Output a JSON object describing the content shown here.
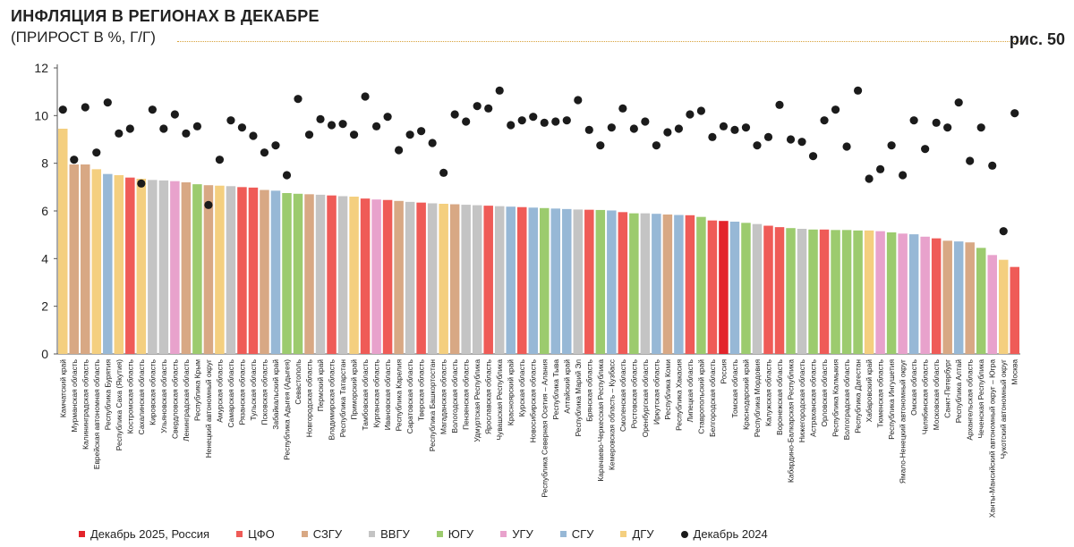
{
  "header": {
    "title": "ИНФЛЯЦИЯ В РЕГИОНАХ В ДЕКАБРЕ",
    "subtitle": "(ПРИРОСТ В %, Г/Г)",
    "figure_label": "рис. 50"
  },
  "colors": {
    "Россия": "#e3242b",
    "ЦФО": "#ef5b57",
    "СЗГУ": "#d8a884",
    "ВВГУ": "#c4c4c4",
    "ЮГУ": "#9ccb6e",
    "УГУ": "#e8a2cc",
    "СГУ": "#97b8d6",
    "ДГУ": "#f4cf7f",
    "dot": "#1b1b1b"
  },
  "legend": [
    {
      "key": "Россия",
      "label": "Декабрь 2025, Россия",
      "color": "#e3242b",
      "shape": "square"
    },
    {
      "key": "ЦФО",
      "label": "ЦФО",
      "color": "#ef5b57",
      "shape": "square"
    },
    {
      "key": "СЗГУ",
      "label": "СЗГУ",
      "color": "#d8a884",
      "shape": "square"
    },
    {
      "key": "ВВГУ",
      "label": "ВВГУ",
      "color": "#c4c4c4",
      "shape": "square"
    },
    {
      "key": "ЮГУ",
      "label": "ЮГУ",
      "color": "#9ccb6e",
      "shape": "square"
    },
    {
      "key": "УГУ",
      "label": "УГУ",
      "color": "#e8a2cc",
      "shape": "square"
    },
    {
      "key": "СГУ",
      "label": "СГУ",
      "color": "#97b8d6",
      "shape": "square"
    },
    {
      "key": "ДГУ",
      "label": "ДГУ",
      "color": "#f4cf7f",
      "shape": "square"
    },
    {
      "key": "dot",
      "label": "Декабрь 2024",
      "color": "#1b1b1b",
      "shape": "dot"
    }
  ],
  "chart_data": {
    "type": "bar",
    "ylim": [
      0,
      12
    ],
    "yticks": [
      0,
      2,
      4,
      6,
      8,
      10,
      12
    ],
    "grid": false,
    "legend_position": "bottom",
    "series": [
      {
        "name": "Декабрь 2025",
        "type": "bar"
      },
      {
        "name": "Декабрь 2024",
        "type": "scatter"
      }
    ],
    "categories": [
      "Камчатский край",
      "Мурманская область",
      "Калининградская область",
      "Еврейская автономная область",
      "Республика Бурятия",
      "Республика Саха (Якутия)",
      "Костромская область",
      "Сахалинская область",
      "Кировская область",
      "Ульяновская область",
      "Свердловская область",
      "Ленинградская область",
      "Республика Крым",
      "Ненецкий автономный округ",
      "Амурская область",
      "Самарская область",
      "Рязанская область",
      "Тульская область",
      "Псковская область",
      "Забайкальский край",
      "Республика Адыгея (Адыгея)",
      "Севастополь",
      "Новгородская область",
      "Пермский край",
      "Владимирская область",
      "Республика Татарстан",
      "Приморский край",
      "Тамбовская область",
      "Курганская область",
      "Ивановская область",
      "Республика Карелия",
      "Саратовская область",
      "Тверская область",
      "Республика Башкортостан",
      "Магаданская область",
      "Вологодская область",
      "Пензенская область",
      "Удмуртская Республика",
      "Ярославская область",
      "Чувашская Республика",
      "Красноярский край",
      "Курская область",
      "Новосибирская область",
      "Республика Северная Осетия – Алания",
      "Республика Тыва",
      "Алтайский край",
      "Республика Марий Эл",
      "Брянская область",
      "Карачаево-Черкесская Республика",
      "Кемеровская область – Кузбасс",
      "Смоленская область",
      "Ростовская область",
      "Оренбургская область",
      "Иркутская область",
      "Республика Коми",
      "Республика Хакасия",
      "Липецкая область",
      "Ставропольский край",
      "Белгородская область",
      "Россия",
      "Томская область",
      "Краснодарский край",
      "Республика Мордовия",
      "Калужская область",
      "Воронежская область",
      "Кабардино-Балкарская Республика",
      "Нижегородская область",
      "Астраханская область",
      "Орловская область",
      "Республика Калмыкия",
      "Волгоградская область",
      "Республика Дагестан",
      "Хабаровский край",
      "Тюменская область",
      "Республика Ингушетия",
      "Ямало-Ненецкий автономный округ",
      "Омская область",
      "Челябинская область",
      "Московская область",
      "Санкт-Петербург",
      "Республика Алтай",
      "Архангельская область",
      "Чеченская Республика",
      "Ханты-Мансийский автономный округ – Югра",
      "Чукотский автономный округ",
      "Москва"
    ],
    "groups": [
      "ДГУ",
      "СЗГУ",
      "СЗГУ",
      "ДГУ",
      "СГУ",
      "ДГУ",
      "ЦФО",
      "ДГУ",
      "ВВГУ",
      "ВВГУ",
      "УГУ",
      "СЗГУ",
      "ЮГУ",
      "СЗГУ",
      "ДГУ",
      "ВВГУ",
      "ЦФО",
      "ЦФО",
      "СЗГУ",
      "СГУ",
      "ЮГУ",
      "ЮГУ",
      "СЗГУ",
      "ВВГУ",
      "ЦФО",
      "ВВГУ",
      "ДГУ",
      "ЦФО",
      "УГУ",
      "ЦФО",
      "СЗГУ",
      "ВВГУ",
      "ЦФО",
      "ВВГУ",
      "ДГУ",
      "СЗГУ",
      "ВВГУ",
      "ВВГУ",
      "ЦФО",
      "ВВГУ",
      "СГУ",
      "ЦФО",
      "СГУ",
      "ЮГУ",
      "СГУ",
      "СГУ",
      "ВВГУ",
      "ЦФО",
      "ЮГУ",
      "СГУ",
      "ЦФО",
      "ЮГУ",
      "ВВГУ",
      "СГУ",
      "СЗГУ",
      "СГУ",
      "ЦФО",
      "ЮГУ",
      "ЦФО",
      "Россия",
      "СГУ",
      "ЮГУ",
      "ВВГУ",
      "ЦФО",
      "ЦФО",
      "ЮГУ",
      "ВВГУ",
      "ЮГУ",
      "ЦФО",
      "ЮГУ",
      "ЮГУ",
      "ЮГУ",
      "ДГУ",
      "УГУ",
      "ЮГУ",
      "УГУ",
      "СГУ",
      "УГУ",
      "ЦФО",
      "СЗГУ",
      "СГУ",
      "СЗГУ",
      "ЮГУ",
      "УГУ",
      "ДГУ",
      "ЦФО"
    ],
    "values": [
      9.45,
      7.95,
      7.95,
      7.75,
      7.55,
      7.5,
      7.4,
      7.35,
      7.3,
      7.28,
      7.25,
      7.2,
      7.12,
      7.08,
      7.06,
      7.04,
      7.0,
      6.98,
      6.88,
      6.85,
      6.75,
      6.72,
      6.7,
      6.68,
      6.65,
      6.62,
      6.6,
      6.52,
      6.48,
      6.46,
      6.42,
      6.38,
      6.35,
      6.32,
      6.3,
      6.28,
      6.26,
      6.24,
      6.22,
      6.2,
      6.18,
      6.16,
      6.14,
      6.12,
      6.1,
      6.08,
      6.06,
      6.05,
      6.04,
      6.02,
      5.95,
      5.9,
      5.9,
      5.88,
      5.85,
      5.83,
      5.82,
      5.75,
      5.6,
      5.58,
      5.55,
      5.5,
      5.45,
      5.38,
      5.32,
      5.28,
      5.25,
      5.22,
      5.22,
      5.2,
      5.2,
      5.18,
      5.18,
      5.15,
      5.1,
      5.05,
      5.02,
      4.92,
      4.85,
      4.75,
      4.72,
      4.68,
      4.45,
      4.15,
      3.95,
      3.65
    ],
    "values_2024": [
      10.25,
      8.15,
      10.35,
      8.45,
      10.55,
      9.25,
      9.45,
      7.15,
      10.25,
      9.45,
      10.05,
      9.25,
      9.55,
      6.25,
      8.15,
      9.8,
      9.5,
      9.15,
      8.45,
      8.75,
      7.5,
      10.7,
      9.2,
      9.85,
      9.6,
      9.65,
      9.2,
      10.8,
      9.55,
      9.95,
      8.55,
      9.2,
      9.35,
      8.85,
      7.6,
      10.05,
      9.75,
      10.4,
      10.3,
      11.05,
      9.6,
      9.8,
      9.95,
      9.7,
      9.75,
      9.8,
      10.65,
      9.4,
      8.75,
      9.5,
      10.3,
      9.45,
      9.75,
      8.75,
      9.3,
      9.45,
      10.05,
      10.2,
      9.1,
      9.55,
      9.4,
      9.5,
      8.75,
      9.1,
      10.45,
      9.0,
      8.9,
      8.3,
      9.8,
      10.25,
      8.7,
      11.05,
      7.35,
      7.75,
      8.75,
      7.5,
      9.8,
      8.6,
      9.7,
      9.5,
      10.55,
      8.1,
      9.5,
      7.9,
      5.15,
      10.1
    ]
  }
}
